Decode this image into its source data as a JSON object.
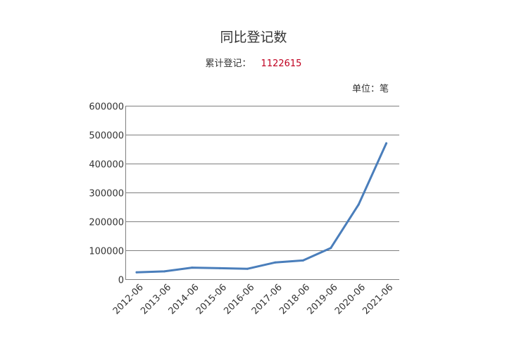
{
  "header": {
    "title": "同比登记数",
    "summary_label": "累计登记：",
    "summary_value": "1122615",
    "unit_label": "单位：笔"
  },
  "colors": {
    "line": "#4a7ebb",
    "grid": "#7f7f7f",
    "summary_value": "#c00020"
  },
  "chart_data": {
    "type": "line",
    "categories": [
      "2012-06",
      "2013-06",
      "2014-06",
      "2015-06",
      "2016-06",
      "2017-06",
      "2018-06",
      "2019-06",
      "2020-06",
      "2021-06"
    ],
    "series": [
      {
        "values": [
          24000,
          27000,
          40000,
          38000,
          36000,
          58000,
          65000,
          108000,
          258000,
          470000
        ]
      }
    ],
    "y_ticks": [
      0,
      100000,
      200000,
      300000,
      400000,
      500000,
      600000
    ],
    "ylim": [
      0,
      600000
    ],
    "grid": true,
    "legend": "none"
  }
}
